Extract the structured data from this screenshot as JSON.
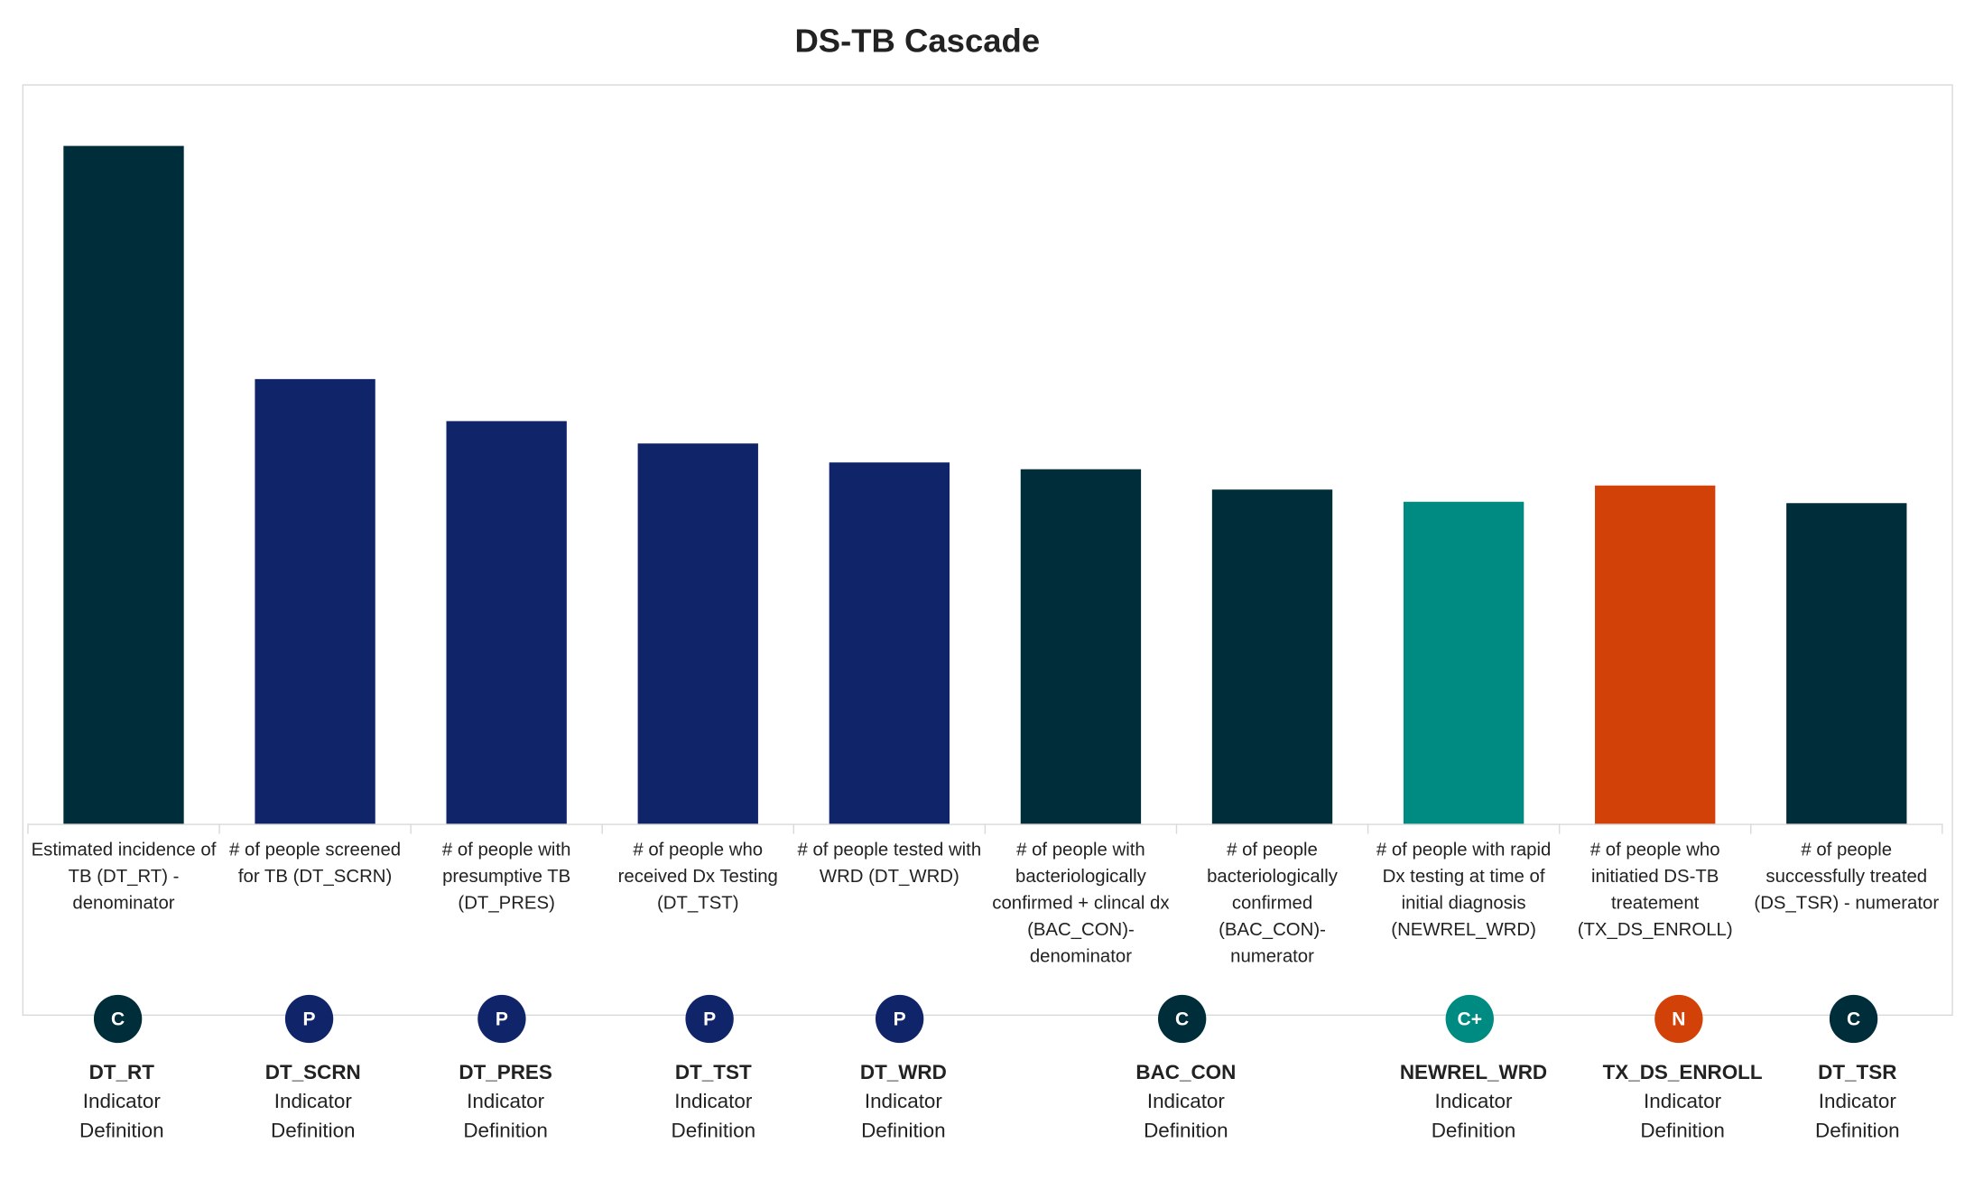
{
  "chart_data": {
    "type": "bar",
    "title": "DS-TB Cascade",
    "categories": [
      "Estimated incidence of  TB (DT_RT) - denominator",
      "# of people screened for TB (DT_SCRN)",
      "# of people with presumptive TB (DT_PRES)",
      "# of people who received Dx Testing (DT_TST)",
      "# of people tested with WRD (DT_WRD)",
      "# of people with bacteriologically confirmed + clincal dx (BAC_CON)- denominator",
      "# of people bacteriologically confirmed (BAC_CON)- numerator",
      "# of people with rapid Dx testing at time of initial diagnosis (NEWREL_WRD)",
      "# of people who initiatied DS-TB treatement (TX_DS_ENROLL)",
      "# of people successfully treated (DS_TSR) - numerator"
    ],
    "values": [
      100,
      65.6,
      59.4,
      56.1,
      53.3,
      52.3,
      49.3,
      47.5,
      49.9,
      47.3
    ],
    "colors": [
      "#002d3a",
      "#10246a",
      "#10246a",
      "#10246a",
      "#10246a",
      "#002d3a",
      "#002d3a",
      "#008b82",
      "#d24208",
      "#002d3a"
    ],
    "ylim": [
      0,
      109
    ],
    "grid": false
  },
  "indicators": [
    {
      "badge": "C",
      "color": "#002d3a",
      "code": "DT_RT",
      "line1": "Indicator",
      "line2": "Definition"
    },
    {
      "badge": "P",
      "color": "#10246a",
      "code": "DT_SCRN",
      "line1": "Indicator",
      "line2": "Definition"
    },
    {
      "badge": "P",
      "color": "#10246a",
      "code": "DT_PRES",
      "line1": "Indicator",
      "line2": "Definition"
    },
    {
      "badge": "P",
      "color": "#10246a",
      "code": "DT_TST",
      "line1": "Indicator",
      "line2": "Definition"
    },
    {
      "badge": "P",
      "color": "#10246a",
      "code": "DT_WRD",
      "line1": "Indicator",
      "line2": "Definition"
    },
    {
      "badge": "C",
      "color": "#002d3a",
      "code": "BAC_CON",
      "line1": "Indicator",
      "line2": "Definition"
    },
    {
      "badge": "C+",
      "color": "#008b82",
      "code": "NEWREL_WRD",
      "line1": "Indicator",
      "line2": "Definition"
    },
    {
      "badge": "N",
      "color": "#d24208",
      "code": "TX_DS_ENROLL",
      "line1": "Indicator",
      "line2": "Definition"
    },
    {
      "badge": "C",
      "color": "#002d3a",
      "code": "DT_TSR",
      "line1": "Indicator",
      "line2": "Definition"
    }
  ]
}
